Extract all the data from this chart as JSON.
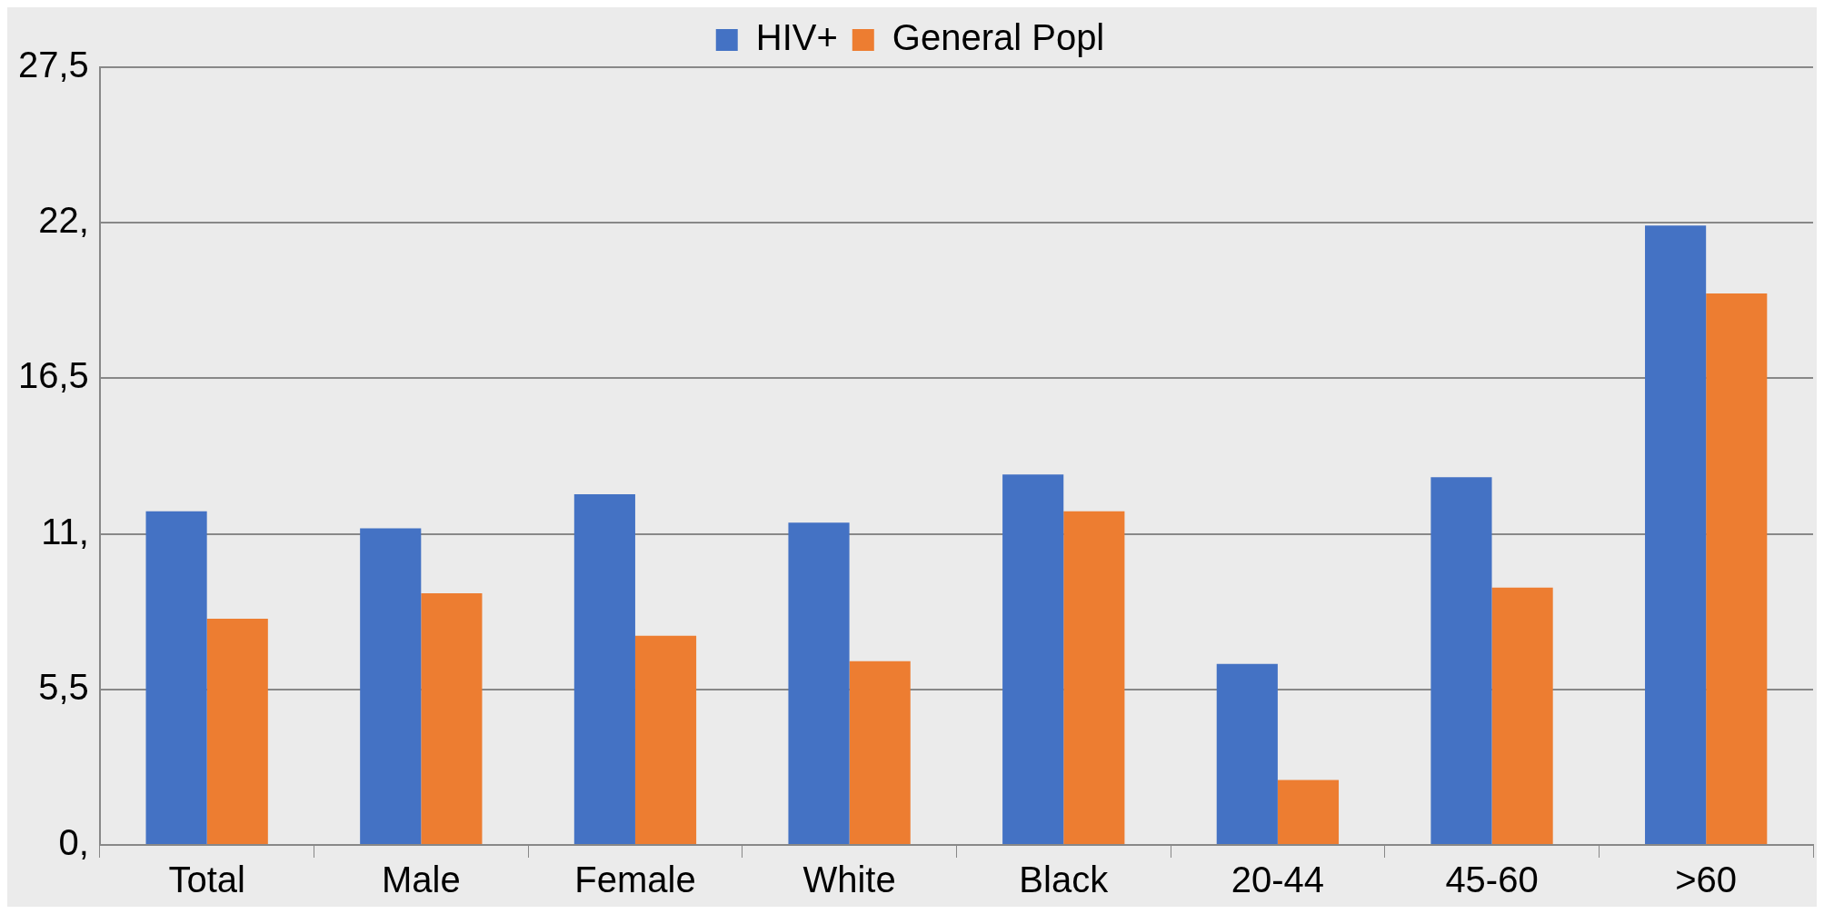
{
  "chart_data": {
    "type": "bar",
    "categories": [
      "Total",
      "Male",
      "Female",
      "White",
      "Black",
      "20-44",
      "45-60",
      ">60"
    ],
    "series": [
      {
        "name": "HIV+",
        "color": "#4472c4",
        "values": [
          11.8,
          11.2,
          12.4,
          11.4,
          13.1,
          6.4,
          13.0,
          21.9
        ]
      },
      {
        "name": "General Popl",
        "color": "#ed7d31",
        "values": [
          8.0,
          8.9,
          7.4,
          6.5,
          11.8,
          2.3,
          9.1,
          19.5
        ]
      }
    ],
    "ylim": [
      0,
      27.5
    ],
    "yticks": [
      {
        "value": 0,
        "label": "0,"
      },
      {
        "value": 5.5,
        "label": "5,5"
      },
      {
        "value": 11,
        "label": "11,"
      },
      {
        "value": 16.5,
        "label": "16,5"
      },
      {
        "value": 22,
        "label": "22,"
      },
      {
        "value": 27.5,
        "label": "27,5"
      }
    ],
    "grid": "y",
    "legend": "top"
  }
}
